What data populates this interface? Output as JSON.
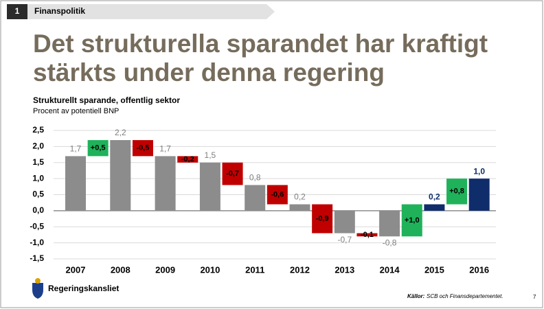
{
  "slide": {
    "number": "1",
    "section": "Finanspolitik",
    "title_lines": [
      "Det strukturella sparandet har kraftigt",
      "stärkts under denna regering"
    ],
    "logo_text": "Regeringskansliet",
    "source_label": "Källor:",
    "source_text": "SCB och Finansdepartementet.",
    "page": "7"
  },
  "chart_data": {
    "type": "waterfall",
    "title": "Strukturellt sparande, offentlig sektor",
    "subtitle": "Procent av potentiell BNP",
    "categories": [
      "2007",
      "2008",
      "2009",
      "2010",
      "2011",
      "2012",
      "2013",
      "2014",
      "2015",
      "2016"
    ],
    "values": [
      1.7,
      2.2,
      1.7,
      1.5,
      0.8,
      0.2,
      -0.7,
      -0.8,
      0.2,
      1.0
    ],
    "value_labels": [
      "1,7",
      "2,2",
      "1,7",
      "1,5",
      "0,8",
      "0,2",
      "-0,7",
      "-0,8",
      "0,2",
      "1,0"
    ],
    "bar_colors": [
      "#8c8c8c",
      "#8c8c8c",
      "#8c8c8c",
      "#8c8c8c",
      "#8c8c8c",
      "#8c8c8c",
      "#8c8c8c",
      "#8c8c8c",
      "#0f2d6b",
      "#0f2d6b"
    ],
    "changes": [
      0.5,
      -0.5,
      -0.2,
      -0.7,
      -0.6,
      -0.9,
      -0.1,
      1.0,
      0.8
    ],
    "change_labels": [
      "+0,5",
      "-0,5",
      "-0,2",
      "-0,7",
      "-0,6",
      "-0,9",
      "-0,1",
      "+1,0",
      "+0,8"
    ],
    "increase_color": "#1fb25a",
    "decrease_color": "#c00000",
    "ylim": [
      -1.5,
      2.5
    ],
    "yticks": [
      {
        "value": 2.5,
        "label": "2,5"
      },
      {
        "value": 2.0,
        "label": "2,0"
      },
      {
        "value": 1.5,
        "label": "1,5"
      },
      {
        "value": 1.0,
        "label": "1,0"
      },
      {
        "value": 0.5,
        "label": "0,5"
      },
      {
        "value": 0,
        "label": "0,0"
      },
      {
        "value": -0.5,
        "label": "-0,5"
      },
      {
        "value": -1.0,
        "label": "-1,0"
      },
      {
        "value": -1.5,
        "label": "-1,5"
      }
    ],
    "grid": true
  }
}
